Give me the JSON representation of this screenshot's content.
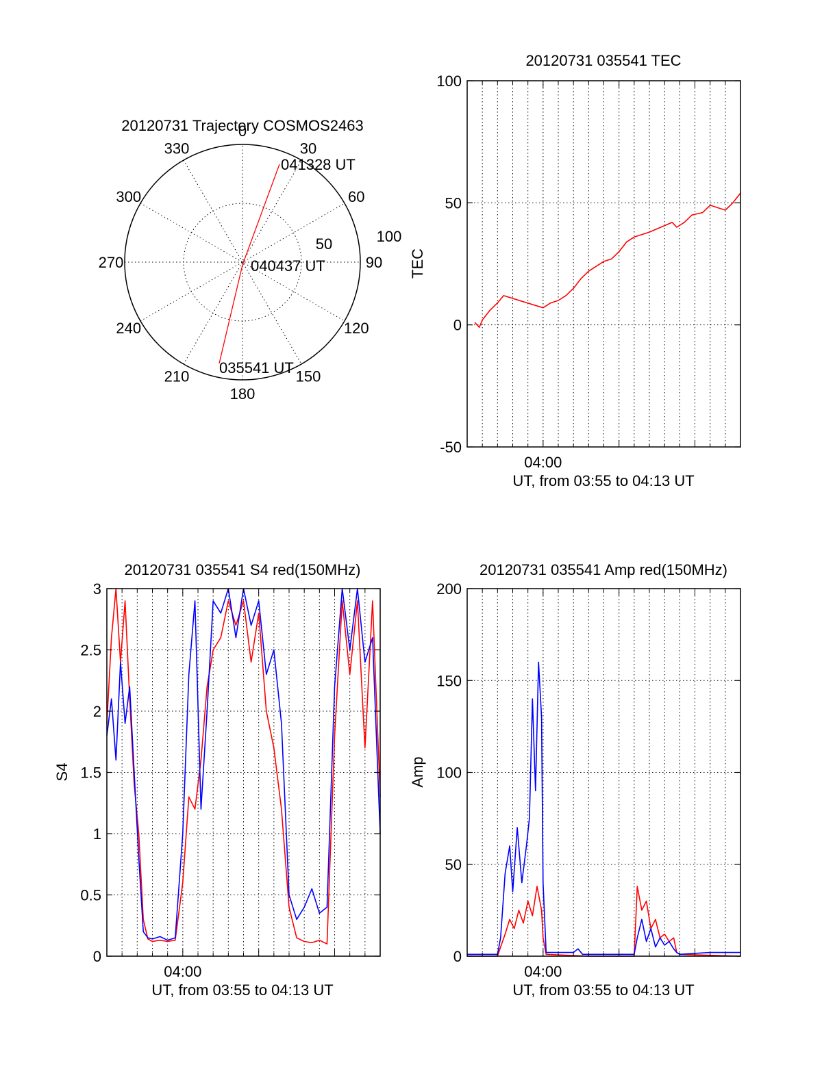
{
  "polar": {
    "title": "20120731 Trajectory COSMOS2463",
    "azimuth_labels": [
      "0",
      "30",
      "60",
      "90",
      "120",
      "150",
      "180",
      "210",
      "240",
      "270",
      "300",
      "330"
    ],
    "ring_labels": [
      "50",
      "100"
    ],
    "track_labels": [
      "041328 UT",
      "040437 UT",
      "035541 UT"
    ],
    "track_color": "#ff0000"
  },
  "colors": {
    "red": "#ff0000",
    "blue": "#0000ff"
  },
  "chart_data": [
    {
      "id": "tec",
      "type": "line",
      "title": "20120731 035541 TEC",
      "ylabel": "TEC",
      "xlabel": "UT, from 03:55 to 04:13 UT",
      "x_unit": "minutes after 03:55 UT",
      "xlim": [
        0.0,
        18.0
      ],
      "ylim": [
        -50,
        100
      ],
      "yticks": [
        -50,
        0,
        50,
        100
      ],
      "xtick_labels": [
        {
          "x": 5.0,
          "label": "04:00"
        }
      ],
      "grid": true,
      "series": [
        {
          "color": "#ff0000",
          "x": [
            0.5,
            0.8,
            1.0,
            1.5,
            2.0,
            2.4,
            5.0,
            5.5,
            6.0,
            6.5,
            7.0,
            7.5,
            8.0,
            8.5,
            9.0,
            9.5,
            10.0,
            10.5,
            11.0,
            11.5,
            12.0,
            13.5,
            13.8,
            14.3,
            14.8,
            15.5,
            16.0,
            16.5,
            17.0,
            17.5,
            18.0
          ],
          "y": [
            1,
            -1,
            2,
            6,
            9,
            12,
            7,
            9,
            10,
            12,
            15,
            19,
            22,
            24,
            26,
            27,
            30,
            34,
            36,
            37,
            38,
            42,
            40,
            42,
            45,
            46,
            49,
            48,
            47,
            50,
            54
          ]
        }
      ]
    },
    {
      "id": "s4",
      "type": "line",
      "title": "20120731 035541 S4 red(150MHz)",
      "ylabel": "S4",
      "xlabel": "UT, from 03:55 to 04:13 UT",
      "x_unit": "minutes after 03:55 UT",
      "xlim": [
        0.0,
        18.0
      ],
      "ylim": [
        0,
        3
      ],
      "yticks": [
        0,
        0.5,
        1,
        1.5,
        2,
        2.5,
        3
      ],
      "ytick_labels": [
        "0",
        "0.5",
        "1",
        "1.5",
        "2",
        "2.5",
        "3"
      ],
      "xtick_labels": [
        {
          "x": 5.0,
          "label": "04:00"
        }
      ],
      "grid": true,
      "series": [
        {
          "color": "#ff0000",
          "x": [
            0,
            0.3,
            0.6,
            0.9,
            1.2,
            1.5,
            1.8,
            2.1,
            2.4,
            2.7,
            3.0,
            3.5,
            4.0,
            4.5,
            5.0,
            5.4,
            5.8,
            6.2,
            6.6,
            7.0,
            7.5,
            8.0,
            8.5,
            9.0,
            9.5,
            10.0,
            10.5,
            11.0,
            11.5,
            12.0,
            12.5,
            13.0,
            13.5,
            14.0,
            14.5,
            15.0,
            15.5,
            16.0,
            16.5,
            17.0,
            17.5,
            18.0
          ],
          "y": [
            1.9,
            2.6,
            3.0,
            2.4,
            2.9,
            2.1,
            1.4,
            1.0,
            0.3,
            0.14,
            0.12,
            0.13,
            0.12,
            0.13,
            0.6,
            1.3,
            1.2,
            1.6,
            2.2,
            2.5,
            2.6,
            2.9,
            2.7,
            2.9,
            2.4,
            2.8,
            2.0,
            1.7,
            1.2,
            0.4,
            0.15,
            0.12,
            0.11,
            0.13,
            0.1,
            1.8,
            2.9,
            2.3,
            2.9,
            1.7,
            2.9,
            1.3
          ]
        },
        {
          "color": "#0000ff",
          "x": [
            0,
            0.3,
            0.6,
            0.9,
            1.2,
            1.5,
            1.8,
            2.1,
            2.4,
            2.7,
            3.0,
            3.5,
            4.0,
            4.5,
            5.0,
            5.4,
            5.8,
            6.2,
            6.6,
            7.0,
            7.5,
            8.0,
            8.5,
            9.0,
            9.5,
            10.0,
            10.5,
            11.0,
            11.5,
            12.0,
            12.5,
            13.0,
            13.5,
            14.0,
            14.5,
            15.0,
            15.5,
            16.0,
            16.5,
            17.0,
            17.5,
            18.0
          ],
          "y": [
            1.8,
            2.1,
            1.6,
            2.4,
            1.9,
            2.2,
            1.5,
            0.8,
            0.2,
            0.15,
            0.14,
            0.16,
            0.13,
            0.15,
            1.0,
            2.3,
            2.9,
            1.2,
            2.0,
            2.9,
            2.8,
            3.0,
            2.6,
            3.0,
            2.7,
            2.9,
            2.3,
            2.5,
            1.9,
            0.5,
            0.3,
            0.4,
            0.55,
            0.35,
            0.4,
            2.2,
            3.0,
            2.5,
            3.0,
            2.4,
            2.6,
            1.0
          ]
        }
      ]
    },
    {
      "id": "amp",
      "type": "line",
      "title": "20120731 035541 Amp red(150MHz)",
      "ylabel": "Amp",
      "xlabel": "UT, from 03:55 to 04:13 UT",
      "x_unit": "minutes after 03:55 UT",
      "xlim": [
        0.0,
        18.0
      ],
      "ylim": [
        0,
        200
      ],
      "yticks": [
        0,
        50,
        100,
        150,
        200
      ],
      "xtick_labels": [
        {
          "x": 5.0,
          "label": "04:00"
        }
      ],
      "grid": true,
      "series": [
        {
          "color": "#ff0000",
          "x": [
            0,
            2.0,
            2.2,
            2.5,
            2.8,
            3.1,
            3.4,
            3.7,
            4.0,
            4.3,
            4.6,
            4.9,
            5.0,
            5.2,
            8.0,
            11.0,
            11.2,
            11.5,
            11.8,
            12.1,
            12.4,
            12.7,
            13.0,
            13.3,
            13.6,
            13.8,
            14.0,
            18.0
          ],
          "y": [
            0,
            0,
            5,
            12,
            20,
            15,
            25,
            18,
            30,
            22,
            38,
            25,
            10,
            1,
            0,
            0,
            38,
            25,
            30,
            15,
            20,
            10,
            12,
            8,
            10,
            2,
            1,
            0
          ]
        },
        {
          "color": "#0000ff",
          "x": [
            0,
            2.0,
            2.2,
            2.5,
            2.8,
            3.0,
            3.3,
            3.6,
            3.9,
            4.1,
            4.3,
            4.5,
            4.7,
            4.9,
            5.0,
            5.2,
            7.0,
            7.3,
            7.6,
            8.0,
            11.0,
            11.2,
            11.5,
            11.8,
            12.1,
            12.4,
            12.7,
            13.0,
            13.3,
            13.6,
            13.8,
            14.0,
            16.0,
            18.0
          ],
          "y": [
            1,
            1,
            10,
            45,
            60,
            35,
            70,
            40,
            60,
            75,
            140,
            90,
            160,
            130,
            40,
            2,
            2,
            4,
            1,
            1,
            1,
            10,
            20,
            8,
            15,
            5,
            10,
            6,
            8,
            4,
            2,
            1,
            2,
            2
          ]
        }
      ]
    }
  ]
}
